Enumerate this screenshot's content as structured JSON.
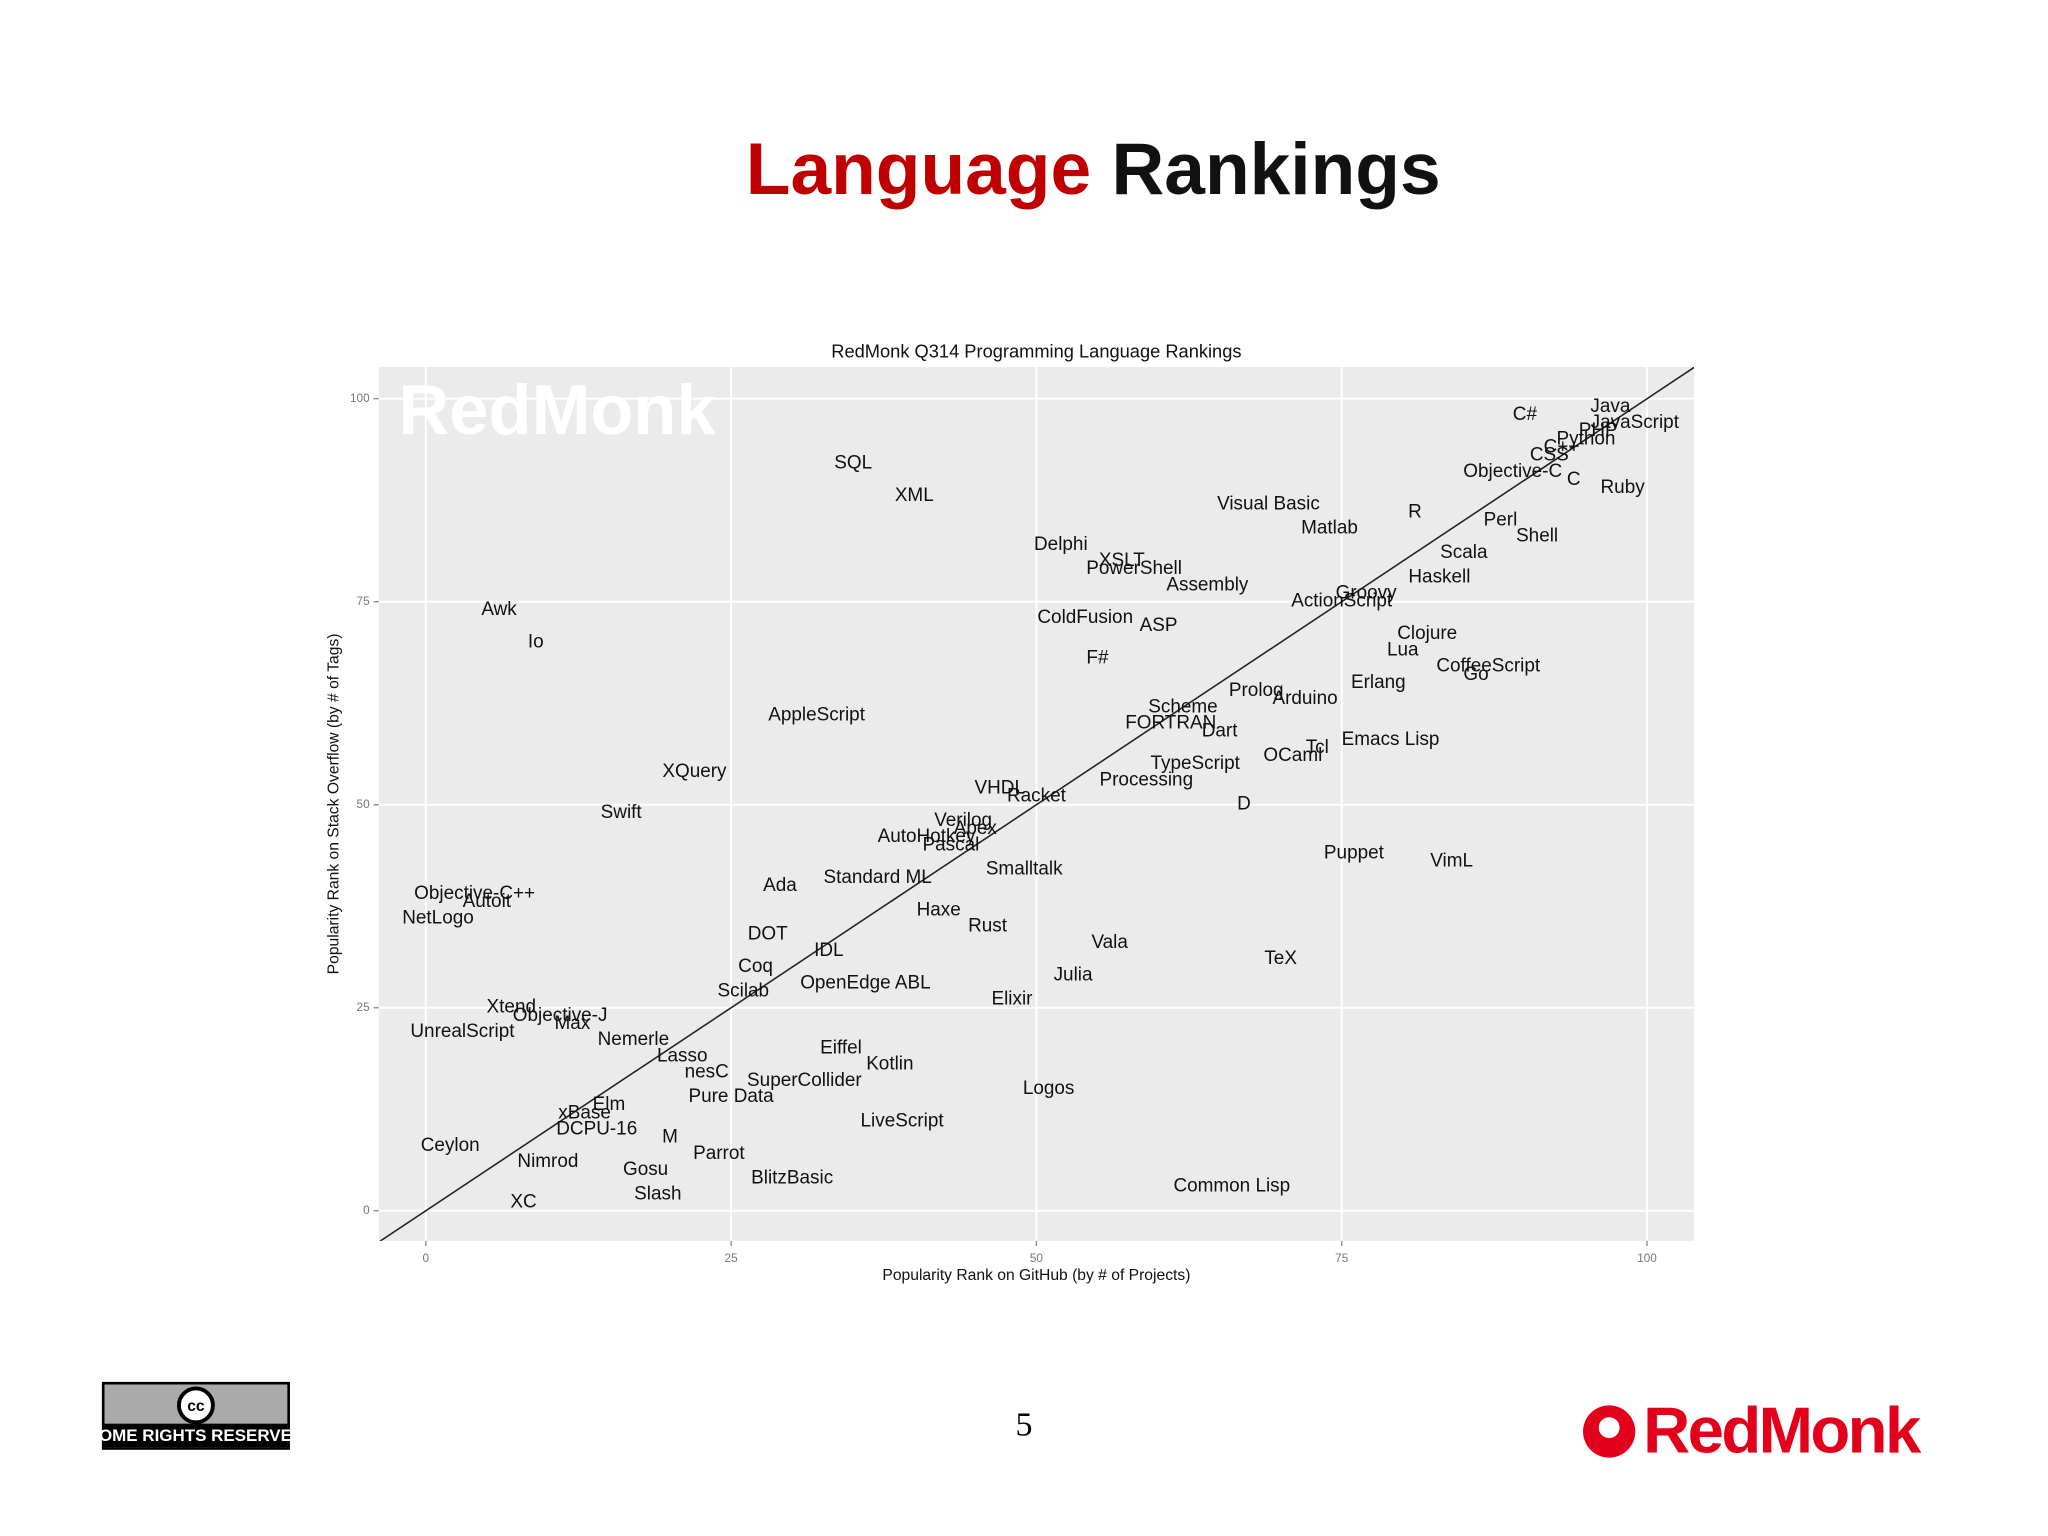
{
  "slide": {
    "title": [
      "Language",
      "Rankings"
    ],
    "page_number": "5",
    "license": "SOME RIGHTS RESERVED",
    "license_icon": "cc",
    "logo": "RedMonk"
  },
  "chart_data": {
    "type": "scatter",
    "title": "RedMonk Q314 Programming Language Rankings",
    "watermark": "RedMonk",
    "x_label": "Popularity Rank on GitHub (by # of Projects)",
    "y_label": "Popularity Rank on Stack Overflow (by # of Tags)",
    "xlim": [
      -3.85,
      103.85
    ],
    "ylim": [
      -3.7,
      103.9
    ],
    "xticks": [
      0,
      25,
      50,
      75,
      100
    ],
    "yticks": [
      0,
      25,
      50,
      75,
      100
    ],
    "grid": true,
    "diagonal": true,
    "color": "#111111",
    "labels": [
      "Java",
      "JavaScript",
      "PHP",
      "Python",
      "C#",
      "C++",
      "CSS",
      "Objective-C",
      "C",
      "Ruby",
      "R",
      "Visual Basic",
      "Matlab",
      "Perl",
      "Shell",
      "Scala",
      "Haskell",
      "Groovy",
      "ActionScript",
      "Delphi",
      "XSLT",
      "PowerShell",
      "Assembly",
      "ColdFusion",
      "ASP",
      "SQL",
      "XML",
      "Awk",
      "Io",
      "F#",
      "Clojure",
      "Lua",
      "CoffeeScript",
      "Go",
      "Erlang",
      "Prolog",
      "Arduino",
      "Scheme",
      "FORTRAN",
      "Dart",
      "AppleScript",
      "Emacs Lisp",
      "Tcl",
      "OCaml",
      "TypeScript",
      "Processing",
      "XQuery",
      "VHDL",
      "Racket",
      "D",
      "Swift",
      "Verilog",
      "Apex",
      "AutoHotkey",
      "Pascal",
      "Puppet",
      "VimL",
      "Smalltalk",
      "Standard ML",
      "Ada",
      "Objective-C++",
      "Autoit",
      "NetLogo",
      "Haxe",
      "Rust",
      "DOT",
      "Vala",
      "IDL",
      "TeX",
      "Coq",
      "Julia",
      "OpenEdge ABL",
      "Scilab",
      "Elixir",
      "Xtend",
      "Objective-J",
      "Max",
      "UnrealScript",
      "Nemerle",
      "Eiffel",
      "Lasso",
      "Kotlin",
      "nesC",
      "SuperCollider",
      "Logos",
      "Pure Data",
      "Elm",
      "xBase",
      "LiveScript",
      "DCPU-16",
      "M",
      "Ceylon",
      "Parrot",
      "Nimrod",
      "Gosu",
      "BlitzBasic",
      "Common Lisp",
      "Slash",
      "XC"
    ],
    "x": [
      97,
      99,
      96,
      95,
      90,
      93,
      92,
      89,
      94,
      98,
      81,
      69,
      74,
      88,
      91,
      85,
      83,
      77,
      75,
      52,
      57,
      58,
      64,
      54,
      60,
      35,
      40,
      6,
      9,
      55,
      82,
      80,
      87,
      86,
      78,
      68,
      72,
      62,
      61,
      65,
      32,
      79,
      73,
      71,
      63,
      59,
      22,
      47,
      50,
      67,
      16,
      44,
      45,
      41,
      43,
      76,
      84,
      49,
      37,
      29,
      4,
      5,
      1,
      42,
      46,
      28,
      56,
      33,
      70,
      27,
      53,
      36,
      26,
      48,
      7,
      11,
      12,
      3,
      17,
      34,
      21,
      38,
      23,
      31,
      51,
      25,
      15,
      13,
      39,
      14,
      20,
      2,
      24,
      10,
      18,
      30,
      66,
      19,
      8
    ],
    "values": [
      99,
      97,
      96,
      95,
      98,
      94,
      93,
      91,
      90,
      89,
      86,
      87,
      84,
      85,
      83,
      81,
      78,
      76,
      75,
      82,
      80,
      79,
      77,
      73,
      72,
      92,
      88,
      74,
      70,
      68,
      71,
      69,
      67,
      66,
      65,
      64,
      63,
      62,
      60,
      59,
      61,
      58,
      57,
      56,
      55,
      53,
      54,
      52,
      51,
      50,
      49,
      48,
      47,
      46,
      45,
      44,
      43,
      42,
      41,
      40,
      39,
      38,
      36,
      37,
      35,
      34,
      33,
      32,
      31,
      30,
      29,
      28,
      27,
      26,
      25,
      24,
      23,
      22,
      21,
      20,
      19,
      18,
      17,
      16,
      15,
      14,
      13,
      12,
      11,
      10,
      9,
      8,
      7,
      6,
      5,
      4,
      3,
      2,
      1
    ]
  }
}
